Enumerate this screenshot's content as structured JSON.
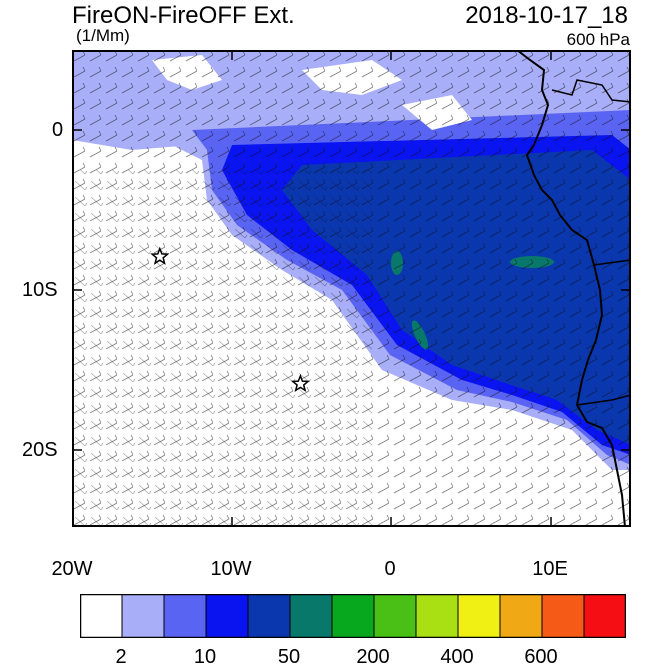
{
  "title": {
    "left": "FireON-FireOFF Ext.",
    "units": "(1/Mm)",
    "right": "2018-10-17_18",
    "level": "600 hPa"
  },
  "map": {
    "lat_labels": [
      "0",
      "10S",
      "20S"
    ],
    "lon_labels": [
      "20W",
      "10W",
      "0",
      "10E"
    ],
    "markers": [
      {
        "name": "star-marker-1",
        "lon": -14.5,
        "lat": -8.0
      },
      {
        "name": "star-marker-2",
        "lon": -5.7,
        "lat": -16.0
      }
    ],
    "coastline_color": "#000000",
    "wind_barbs": "dense field of black wind barbs over the whole domain"
  },
  "colorbar": {
    "labels": [
      "2",
      "10",
      "50",
      "200",
      "400",
      "600"
    ],
    "colors": [
      "#ffffff",
      "#a8aef8",
      "#5a64f2",
      "#0a14f0",
      "#0a37ae",
      "#08786a",
      "#08a81e",
      "#4ac016",
      "#a8e014",
      "#f0f014",
      "#f0a814",
      "#f55a16",
      "#f50f14"
    ]
  }
}
